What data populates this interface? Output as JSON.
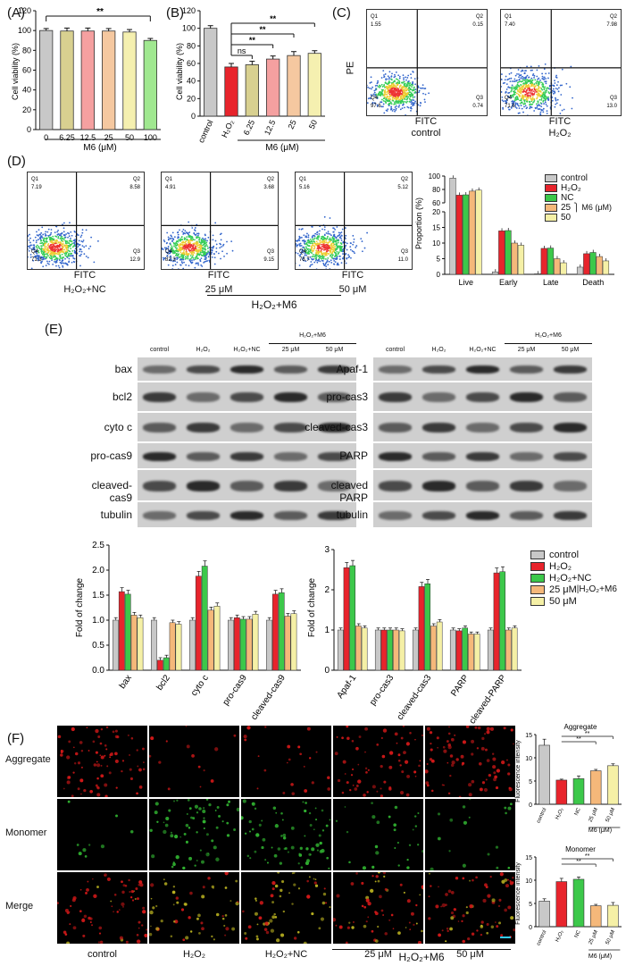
{
  "panelA": {
    "letter": "(A)",
    "ylabel": "Cell viability (%)",
    "xtitle": "M6 (μM)",
    "sig": "**"
  },
  "panelB": {
    "letter": "(B)",
    "ylabel": "Cell viability (%)",
    "xtitle": "M6 (μM)",
    "sig": [
      "ns",
      "**",
      "**",
      "**"
    ]
  },
  "panelC": {
    "letter": "(C)",
    "ylabel": "PE",
    "xlabel": "FITC",
    "plots": [
      {
        "caption": "control",
        "q1": "1.55",
        "q2": "0.15",
        "q3": "0.74",
        "q4": "97.6"
      },
      {
        "caption": "H2O2",
        "q1": "7.40",
        "q2": "7.98",
        "q3": "13.0",
        "q4": "71.6"
      }
    ]
  },
  "panelD": {
    "letter": "(D)",
    "xlabel": "FITC",
    "plots": [
      {
        "caption": "H2O2+NC",
        "q1": "7.19",
        "q2": "8.58",
        "q3": "12.9",
        "q4": "71.3"
      },
      {
        "caption": "25 μM",
        "q1": "4.91",
        "q2": "3.68",
        "q3": "9.15",
        "q4": "82.3"
      },
      {
        "caption": "50 μM",
        "q1": "5.16",
        "q2": "5.12",
        "q3": "11.0",
        "q4": "78.7"
      }
    ],
    "group_label": "H2O2+M6",
    "chart_ylabel": "Proportion (%)",
    "legend": [
      "control",
      "H2O2",
      "NC",
      "25",
      "50"
    ],
    "legend_group": "M6 (μM)"
  },
  "panelE": {
    "letter": "(E)",
    "left_lanes": [
      "control",
      "H2O2",
      "H2O2+NC",
      "25 μM",
      "50 μM"
    ],
    "left_group": "H2O2+M6",
    "left_rows": [
      "bax",
      "bcl2",
      "cyto c",
      "pro-cas9",
      "cleaved-cas9",
      "tubulin"
    ],
    "right_lanes": [
      "control",
      "H2O2",
      "H2O2+NC",
      "25 μM",
      "50 μM"
    ],
    "right_group": "H2O2+M6",
    "right_rows": [
      "Apaf-1",
      "pro-cas3",
      "cleaved-cas3",
      "PARP",
      "cleaved PARP",
      "tubulin"
    ],
    "chart_ylabel": "Fold of change",
    "legend": [
      "control",
      "H2O2",
      "H2O2+NC",
      "25 μM",
      "50 μM"
    ],
    "legend_group": "H2O2+M6"
  },
  "panelF": {
    "letter": "(F)",
    "rows": [
      "Aggregate",
      "Monomer",
      "Merge"
    ],
    "captions": [
      "control",
      "H2O2",
      "H2O2+NC",
      "25 μM",
      "50 μM"
    ],
    "group_label": "H2O2+M6",
    "chart1_title": "Aggregate",
    "chart2_title": "Monomer",
    "chart_ylabel": "Fluorescence intensity",
    "xtitle": "M6 (μM)"
  },
  "colors": {
    "control": "#c8c8c8",
    "h2o2": "#e8242c",
    "nc": "#3cc84a",
    "m25": "#f5b87a",
    "m50": "#f5f0a6",
    "a_colors": [
      "#c8c8c8",
      "#d8d090",
      "#f5a0a0",
      "#f5c8a0",
      "#f5f0b0",
      "#a0e890"
    ]
  },
  "chart_data": [
    {
      "type": "bar",
      "id": "A",
      "categories": [
        "0",
        "6.25",
        "12.5",
        "25",
        "50",
        "100"
      ],
      "values": [
        100,
        99.5,
        99.5,
        99.5,
        98.5,
        90
      ],
      "errors": [
        2,
        3,
        3,
        2.5,
        2.5,
        2
      ],
      "ylim": [
        0,
        120
      ],
      "yticks": [
        0,
        20,
        40,
        60,
        80,
        100,
        120
      ]
    },
    {
      "type": "bar",
      "id": "B",
      "categories": [
        "control",
        "H2O2",
        "6.25",
        "12.5",
        "25",
        "50"
      ],
      "values": [
        100,
        56,
        58.5,
        65,
        69,
        71.5
      ],
      "errors": [
        3,
        4,
        4,
        3.5,
        4.5,
        3
      ],
      "ylim": [
        0,
        120
      ],
      "yticks": [
        0,
        20,
        40,
        60,
        80,
        100,
        120
      ]
    },
    {
      "type": "bar",
      "id": "D",
      "categories": [
        "Live",
        "Early",
        "Late",
        "Death"
      ],
      "series": [
        {
          "name": "control",
          "values": [
            97,
            0.8,
            0.2,
            2.3
          ]
        },
        {
          "name": "H2O2",
          "values": [
            71.5,
            13.9,
            8.3,
            6.6
          ]
        },
        {
          "name": "NC",
          "values": [
            72,
            14.0,
            8.4,
            7.0
          ]
        },
        {
          "name": "25",
          "values": [
            77.5,
            10.0,
            5.0,
            5.7
          ]
        },
        {
          "name": "50",
          "values": [
            79,
            9.3,
            3.7,
            4.3
          ]
        }
      ],
      "yticks_low": [
        0,
        5,
        10,
        15,
        20
      ],
      "yticks_high": [
        60,
        80,
        100
      ]
    },
    {
      "type": "bar",
      "id": "E-left",
      "categories": [
        "bax",
        "bcl2",
        "cyto c",
        "pro-cas9",
        "cleaved-cas9"
      ],
      "series": [
        {
          "name": "control",
          "values": [
            1.0,
            1.0,
            1.0,
            1.0,
            1.0
          ]
        },
        {
          "name": "H2O2",
          "values": [
            1.57,
            0.2,
            1.88,
            1.05,
            1.52
          ]
        },
        {
          "name": "H2O2+NC",
          "values": [
            1.52,
            0.25,
            2.08,
            1.02,
            1.55
          ]
        },
        {
          "name": "25 μM",
          "values": [
            1.1,
            0.95,
            1.2,
            1.02,
            1.08
          ]
        },
        {
          "name": "50 μM",
          "values": [
            1.05,
            0.92,
            1.28,
            1.12,
            1.13
          ]
        }
      ],
      "ylim": [
        0,
        2.5
      ],
      "yticks": [
        0.0,
        0.5,
        1.0,
        1.5,
        2.0,
        2.5
      ]
    },
    {
      "type": "bar",
      "id": "E-right",
      "categories": [
        "Apaf-1",
        "pro-cas3",
        "cleaved-cas3",
        "PARP",
        "cleaved-PARP"
      ],
      "series": [
        {
          "name": "control",
          "values": [
            1.0,
            1.0,
            1.0,
            1.0,
            1.0
          ]
        },
        {
          "name": "H2O2",
          "values": [
            2.55,
            1.0,
            2.08,
            0.98,
            2.42
          ]
        },
        {
          "name": "H2O2+NC",
          "values": [
            2.6,
            1.0,
            2.15,
            1.05,
            2.45
          ]
        },
        {
          "name": "25 μM",
          "values": [
            1.1,
            1.0,
            1.1,
            0.9,
            1.0
          ]
        },
        {
          "name": "50 μM",
          "values": [
            1.05,
            0.98,
            1.2,
            0.9,
            1.05
          ]
        }
      ],
      "ylim": [
        0,
        3
      ],
      "yticks": [
        0,
        1,
        2,
        3
      ]
    },
    {
      "type": "bar",
      "id": "F-aggregate",
      "categories": [
        "control",
        "H2O2",
        "NC",
        "25 μM",
        "50 μM"
      ],
      "values": [
        12.7,
        5.2,
        5.5,
        7.2,
        8.3
      ],
      "errors": [
        1.3,
        0.2,
        0.6,
        0.3,
        0.4
      ],
      "ylim": [
        0,
        15
      ],
      "yticks": [
        0,
        5,
        10,
        15
      ]
    },
    {
      "type": "bar",
      "id": "F-monomer",
      "categories": [
        "control",
        "H2O2",
        "NC",
        "25 μM",
        "50 μM"
      ],
      "values": [
        5.5,
        9.7,
        10.2,
        4.5,
        4.6
      ],
      "errors": [
        0.5,
        0.7,
        0.5,
        0.3,
        0.6
      ],
      "ylim": [
        0,
        15
      ],
      "yticks": [
        0,
        5,
        10,
        15
      ]
    }
  ]
}
